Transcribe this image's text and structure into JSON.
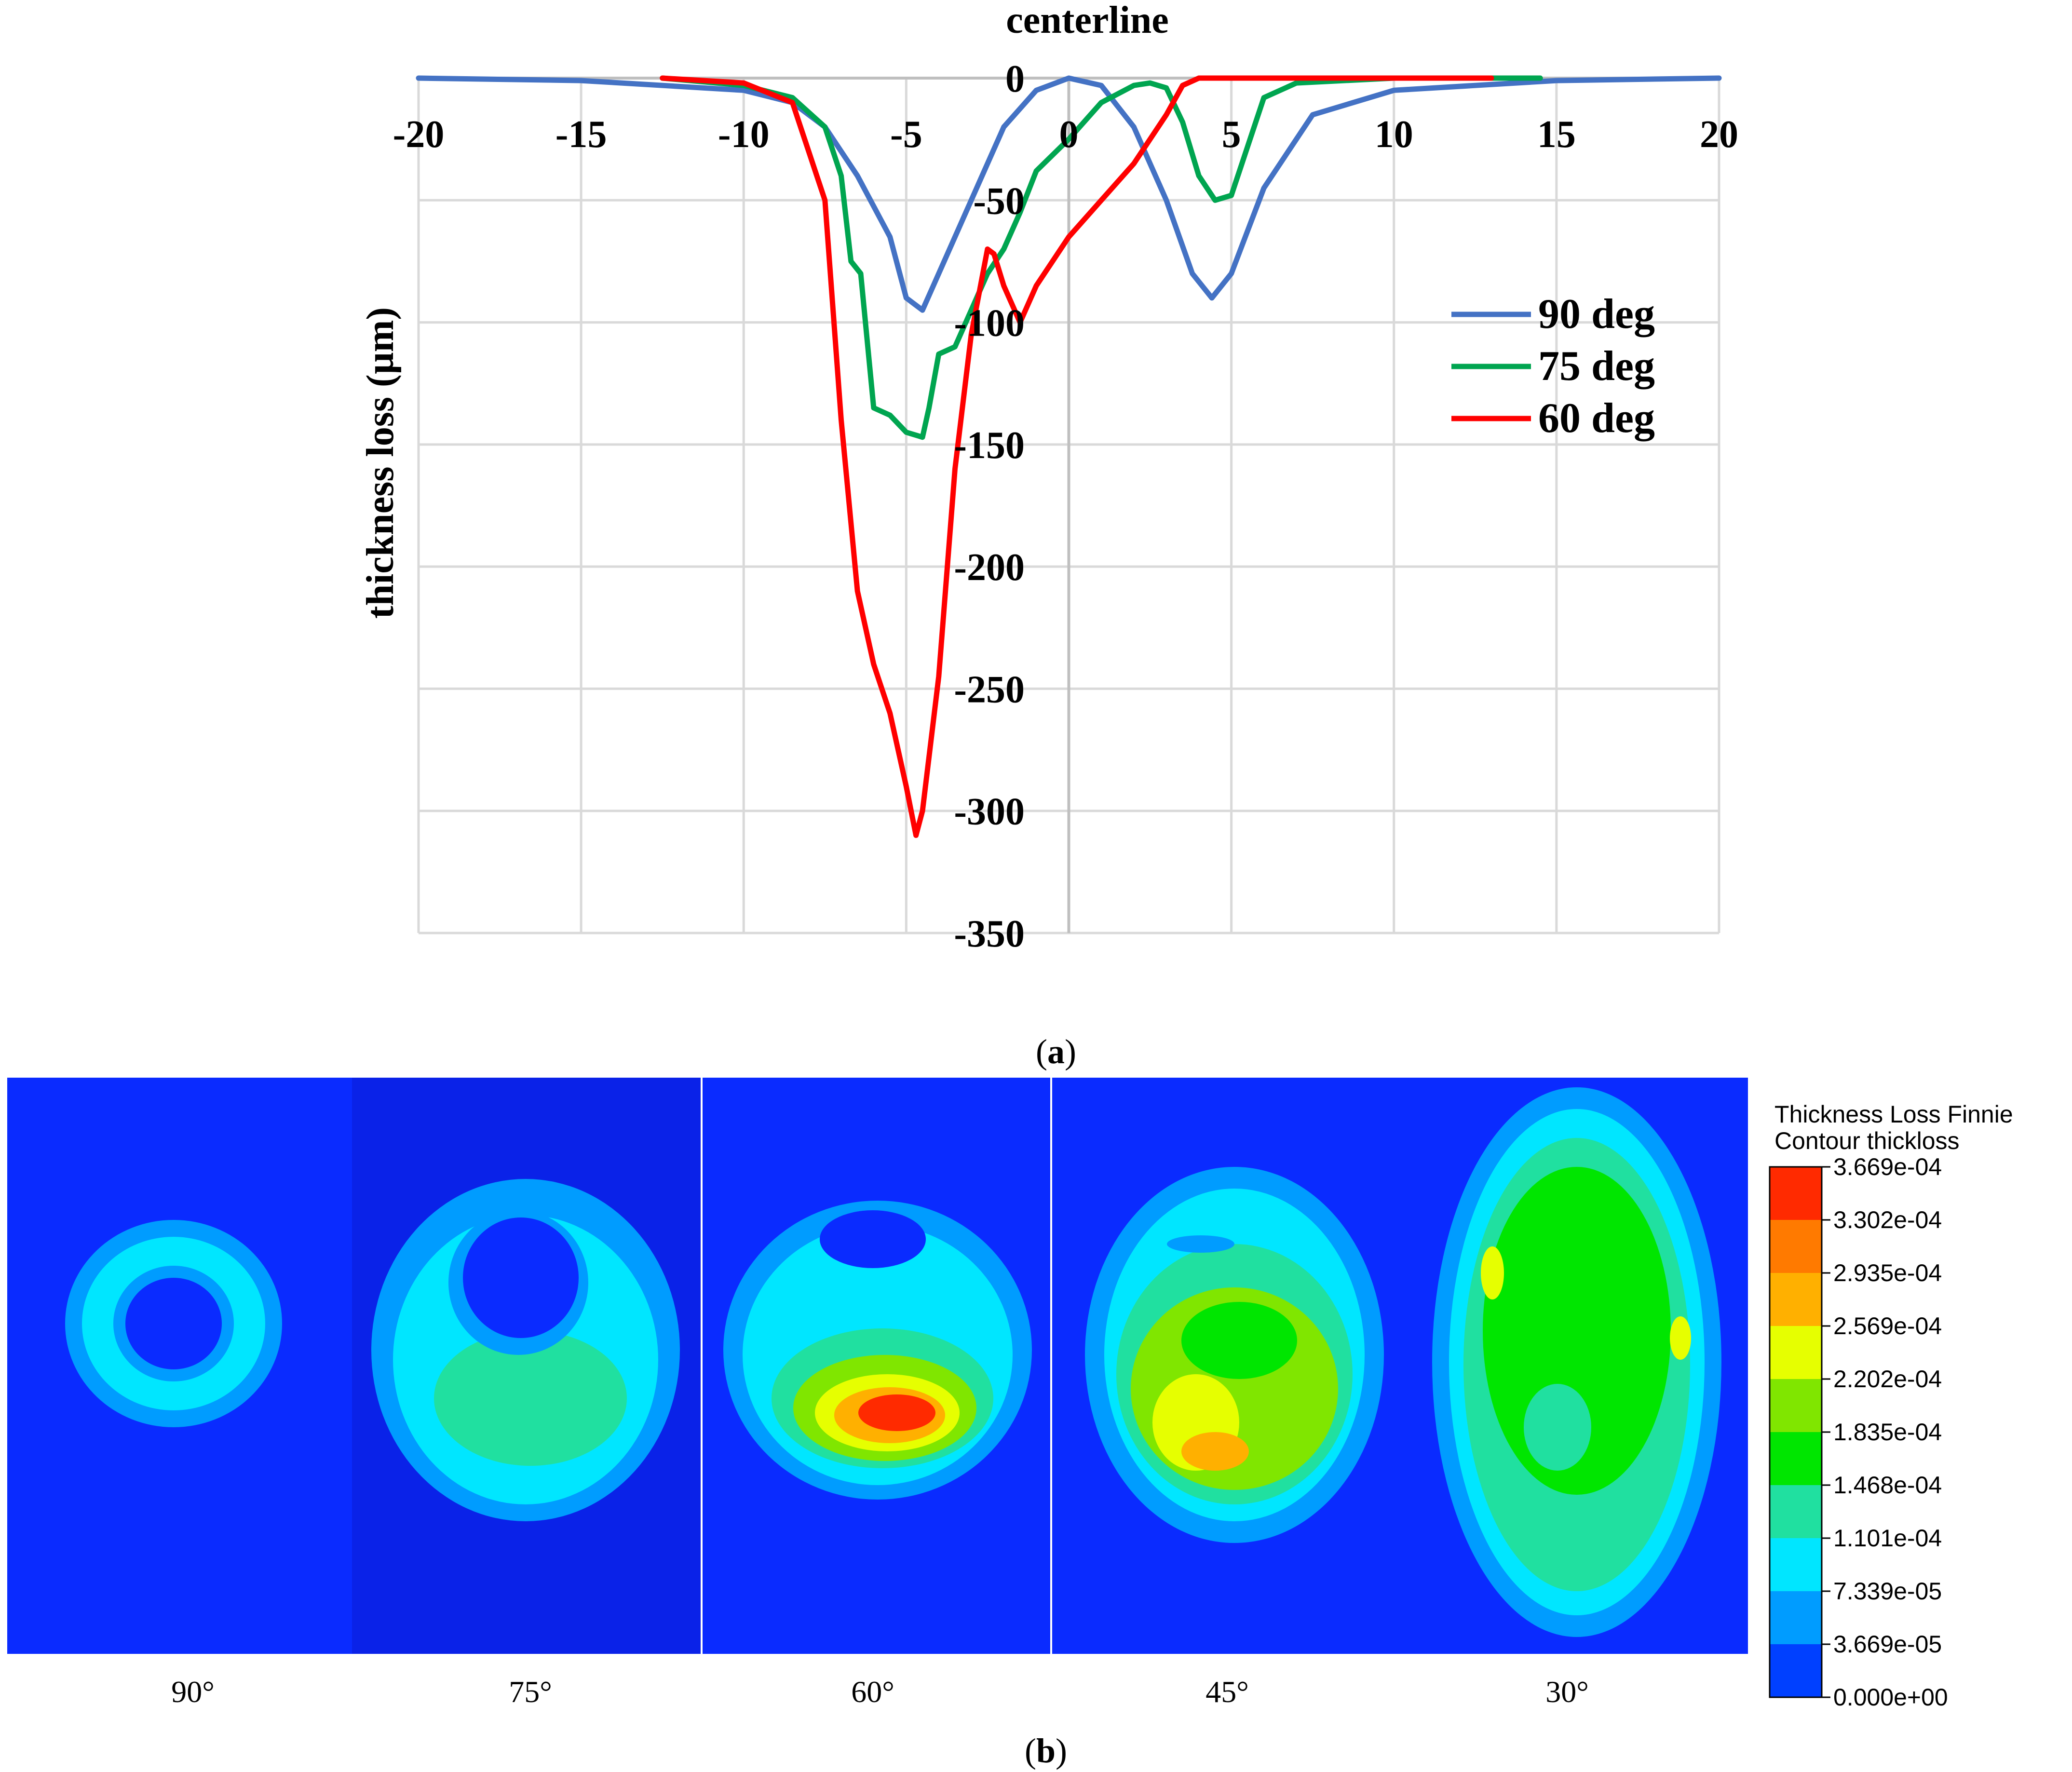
{
  "chart_data": {
    "type": "line",
    "title": "centerline",
    "ylabel": "thickness loss (µm)",
    "xlabel": "",
    "xlim": [
      -20,
      20
    ],
    "ylim": [
      -350,
      0
    ],
    "xticks": [
      -20,
      -15,
      -10,
      -5,
      0,
      5,
      10,
      15,
      20
    ],
    "xtick_labels": [
      "-20",
      "-15",
      "-10",
      "-5",
      "0",
      "5",
      "10",
      "15",
      "20"
    ],
    "yticks": [
      0,
      -50,
      -100,
      -150,
      -200,
      -250,
      -300,
      -350
    ],
    "ytick_labels": [
      "0",
      "-50",
      "-100",
      "-150",
      "-200",
      "-250",
      "-300",
      "-350"
    ],
    "grid": true,
    "legend_position": "right",
    "series": [
      {
        "name": "90 deg",
        "color": "#4472c4",
        "x": [
          -20,
          -15,
          -10,
          -8.5,
          -7.5,
          -6.5,
          -5.5,
          -5,
          -4.5,
          -4,
          -3,
          -2,
          -1,
          0,
          1,
          2,
          3,
          3.8,
          4.4,
          5,
          6,
          7.5,
          10,
          15,
          20
        ],
        "y": [
          0,
          -1,
          -5,
          -10,
          -20,
          -40,
          -65,
          -90,
          -95,
          -80,
          -50,
          -20,
          -5,
          0,
          -3,
          -20,
          -50,
          -80,
          -90,
          -80,
          -45,
          -15,
          -5,
          -1,
          0
        ]
      },
      {
        "name": "75 deg",
        "color": "#00a550",
        "x": [
          -12.5,
          -10,
          -8.5,
          -7.5,
          -7,
          -6.7,
          -6.4,
          -6,
          -5.5,
          -5,
          -4.5,
          -4.3,
          -4,
          -3.5,
          -3,
          -2.5,
          -2,
          -1.5,
          -1,
          0,
          1,
          2,
          2.5,
          3,
          3.5,
          4,
          4.5,
          5,
          6,
          7,
          10,
          14.5
        ],
        "y": [
          0,
          -3,
          -8,
          -20,
          -40,
          -75,
          -80,
          -135,
          -138,
          -145,
          -147,
          -135,
          -113,
          -110,
          -95,
          -80,
          -70,
          -55,
          -38,
          -25,
          -10,
          -3,
          -2,
          -4,
          -18,
          -40,
          -50,
          -48,
          -8,
          -2,
          0,
          0
        ],
        "note": "green curve"
      },
      {
        "name": "60 deg",
        "color": "#ff0000",
        "x": [
          -12.5,
          -10,
          -8.5,
          -7.5,
          -7,
          -6.5,
          -6,
          -5.5,
          -5,
          -4.7,
          -4.5,
          -4,
          -3.5,
          -3,
          -2.5,
          -2.3,
          -2,
          -1.5,
          -1,
          0,
          1,
          2,
          3,
          3.5,
          4,
          13
        ],
        "y": [
          0,
          -2,
          -10,
          -50,
          -140,
          -210,
          -240,
          -260,
          -290,
          -310,
          -300,
          -245,
          -160,
          -105,
          -70,
          -72,
          -85,
          -100,
          -85,
          -65,
          -50,
          -35,
          -15,
          -3,
          0,
          0
        ]
      }
    ]
  },
  "captions": {
    "a_open": "(",
    "a_letter": "a",
    "a_close": ")",
    "b_open": "(",
    "b_letter": "b",
    "b_close": ")"
  },
  "contour_panel": {
    "angle_labels": [
      "90°",
      "75°",
      "60°",
      "45°",
      "30°"
    ],
    "legend": {
      "title_line1": "Thickness Loss Finnie",
      "title_line2": "Contour thickloss",
      "levels": [
        "3.669e-04",
        "3.302e-04",
        "2.935e-04",
        "2.569e-04",
        "2.202e-04",
        "1.835e-04",
        "1.468e-04",
        "1.101e-04",
        "7.339e-05",
        "3.669e-05",
        "0.000e+00"
      ],
      "colors": [
        "#ff2a00",
        "#ff7a00",
        "#ffb000",
        "#e6ff00",
        "#80e600",
        "#00e600",
        "#20e0a0",
        "#00e6ff",
        "#009cff",
        "#0040ff"
      ]
    },
    "background_color": "#0a2bff"
  }
}
